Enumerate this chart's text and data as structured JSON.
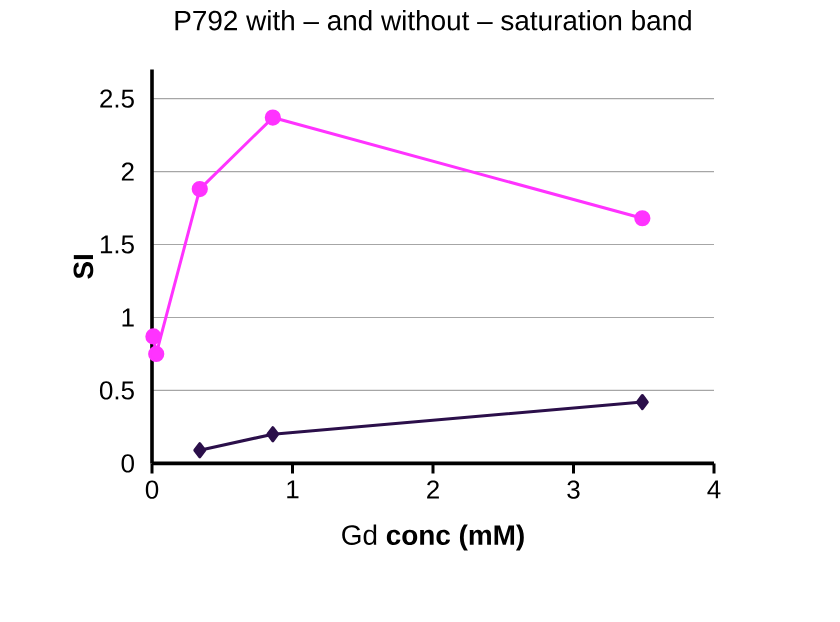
{
  "chart_data": {
    "type": "line",
    "title": "P792 with – and without – saturation band",
    "xlabel": "Gd **conc (mM)**",
    "ylabel": "**SI**",
    "xlim": [
      0,
      4
    ],
    "xticks": [
      0,
      1,
      2,
      3,
      4
    ],
    "ylim": [
      0,
      2.7
    ],
    "yticks": [
      0,
      0.5,
      1,
      1.5,
      2,
      2.5
    ],
    "grid": "y",
    "series": [
      {
        "color": "#ff33ff",
        "marker": "circle",
        "x": [
          0.01,
          0.03,
          0.34,
          0.86,
          3.49
        ],
        "values": [
          0.87,
          0.75,
          1.88,
          2.37,
          1.68
        ]
      },
      {
        "color": "#2b0f4a",
        "marker": "diamond",
        "x": [
          0.34,
          0.86,
          3.49
        ],
        "values": [
          0.09,
          0.2,
          0.42
        ]
      }
    ]
  }
}
